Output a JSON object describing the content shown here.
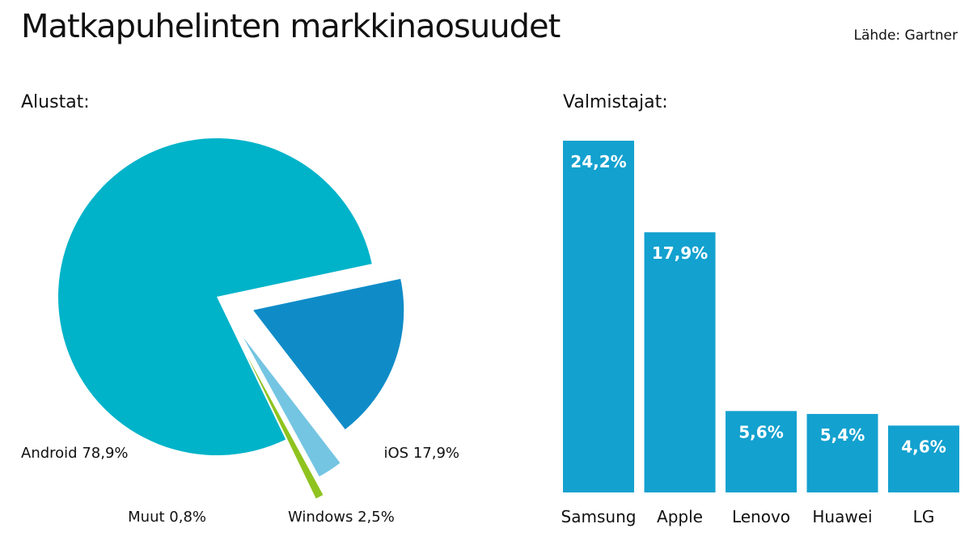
{
  "title": "Matkapuhelinten markkinaosuudet",
  "source": "Lähde: Gartner",
  "colors": {
    "android": "#00b3c9",
    "ios": "#0f8cc8",
    "windows": "#74c5e2",
    "muut": "#8fc31f",
    "bars": "#13a1cf"
  },
  "chart_data": [
    {
      "type": "pie",
      "title": "Alustat:",
      "slices": [
        {
          "name": "Android",
          "value": 78.9,
          "label": "Android 78,9%"
        },
        {
          "name": "iOS",
          "value": 17.9,
          "label": "iOS 17,9%"
        },
        {
          "name": "Windows",
          "value": 2.5,
          "label": "Windows 2,5%"
        },
        {
          "name": "Muut",
          "value": 0.8,
          "label": "Muut 0,8%"
        }
      ]
    },
    {
      "type": "bar",
      "title": "Valmistajat:",
      "categories": [
        "Samsung",
        "Apple",
        "Lenovo",
        "Huawei",
        "LG"
      ],
      "values": [
        24.2,
        17.9,
        5.6,
        5.4,
        4.6
      ],
      "value_labels": [
        "24,2%",
        "17,9%",
        "5,6%",
        "5,4%",
        "4,6%"
      ],
      "ylim": [
        0,
        24.2
      ]
    }
  ]
}
